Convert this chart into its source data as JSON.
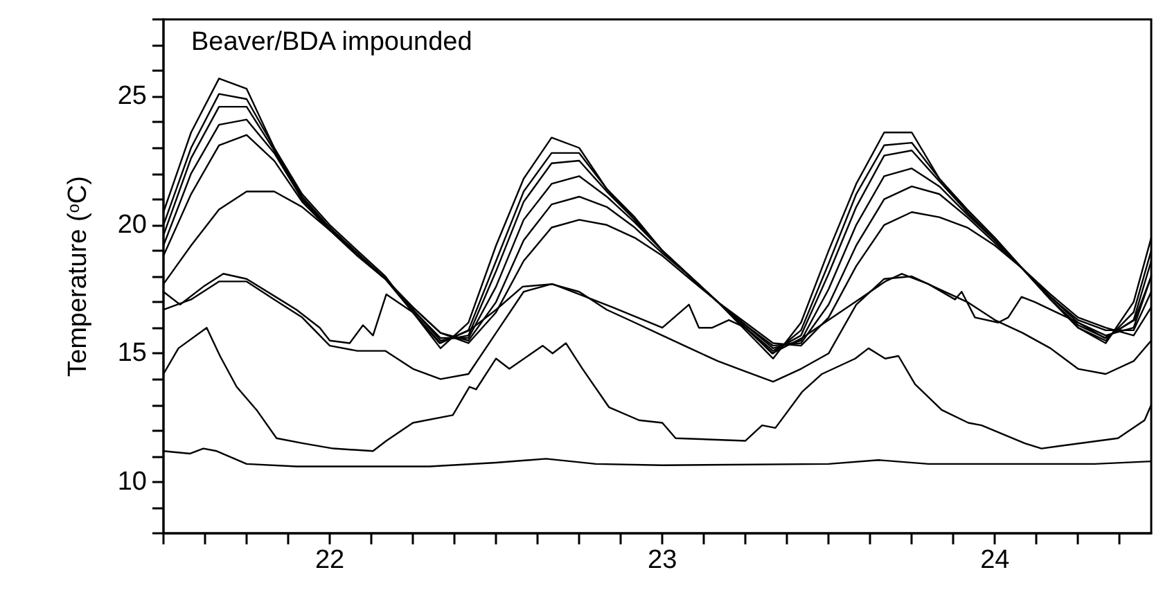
{
  "chart_data": {
    "type": "line",
    "title": "Beaver/BDA impounded",
    "ylabel": "Temperature ($^{o}$C)",
    "x": [
      21.5,
      21.583,
      21.667,
      21.75,
      21.833,
      21.917,
      22.0,
      22.083,
      22.167,
      22.25,
      22.333,
      22.417,
      22.5,
      22.583,
      22.667,
      22.75,
      22.833,
      22.917,
      23.0,
      23.083,
      23.167,
      23.25,
      23.333,
      23.417,
      23.5,
      23.583,
      23.667,
      23.75,
      23.833,
      23.917,
      24.0,
      24.083,
      24.167,
      24.25,
      24.333,
      24.417,
      24.47
    ],
    "series": [
      {
        "color": "#000000",
        "values": [
          20.5,
          23.6,
          25.7,
          25.3,
          23.0,
          21.2,
          20.0,
          19.0,
          18.0,
          16.6,
          15.2,
          16.2,
          19.2,
          21.8,
          23.4,
          23.0,
          21.4,
          20.3,
          19.0,
          18.0,
          17.0,
          15.9,
          14.8,
          16.2,
          19.0,
          21.6,
          23.6,
          23.6,
          21.8,
          20.6,
          19.5,
          18.3,
          17.1,
          16.0,
          15.4,
          17.0,
          19.5
        ]
      },
      {
        "color": "#000000",
        "values": [
          20.0,
          23.0,
          25.1,
          24.9,
          23.0,
          21.1,
          19.9,
          18.9,
          17.9,
          16.6,
          15.4,
          15.9,
          18.6,
          21.3,
          22.8,
          22.8,
          21.4,
          20.2,
          19.0,
          18.0,
          17.0,
          16.0,
          15.0,
          15.9,
          18.5,
          21.2,
          23.1,
          23.2,
          21.8,
          20.5,
          19.4,
          18.3,
          17.1,
          16.0,
          15.5,
          16.6,
          19.0
        ]
      },
      {
        "color": "#000000",
        "values": [
          19.6,
          22.6,
          24.6,
          24.6,
          22.9,
          21.0,
          19.9,
          18.9,
          17.9,
          16.7,
          15.5,
          15.7,
          18.2,
          20.9,
          22.4,
          22.5,
          21.3,
          20.2,
          19.0,
          18.0,
          17.0,
          16.0,
          15.1,
          15.7,
          18.1,
          20.7,
          22.7,
          22.9,
          21.7,
          20.5,
          19.4,
          18.3,
          17.1,
          16.1,
          15.6,
          16.3,
          18.6
        ]
      },
      {
        "color": "#000000",
        "values": [
          19.2,
          22.0,
          23.9,
          24.1,
          22.8,
          21.0,
          19.8,
          18.9,
          17.9,
          16.7,
          15.6,
          15.6,
          17.6,
          20.2,
          21.6,
          21.9,
          21.1,
          20.1,
          19.0,
          18.0,
          17.0,
          16.1,
          15.2,
          15.5,
          17.5,
          20.0,
          21.9,
          22.2,
          21.5,
          20.4,
          19.4,
          18.3,
          17.2,
          16.2,
          15.7,
          16.0,
          18.0
        ]
      },
      {
        "color": "#000000",
        "values": [
          18.8,
          21.2,
          23.1,
          23.5,
          22.5,
          20.9,
          19.8,
          18.8,
          17.9,
          16.8,
          15.8,
          15.5,
          17.0,
          19.4,
          20.8,
          21.1,
          20.7,
          19.9,
          18.9,
          18.0,
          17.0,
          16.1,
          15.3,
          15.4,
          16.9,
          19.2,
          21.0,
          21.5,
          21.2,
          20.3,
          19.3,
          18.3,
          17.2,
          16.3,
          15.9,
          15.9,
          17.4
        ]
      },
      {
        "color": "#000000",
        "values": [
          17.7,
          19.2,
          20.6,
          21.3,
          21.3,
          20.7,
          19.8,
          18.8,
          17.9,
          16.8,
          15.8,
          15.4,
          16.6,
          18.6,
          19.9,
          20.2,
          20.0,
          19.5,
          18.8,
          17.9,
          17.0,
          16.2,
          15.4,
          15.3,
          16.4,
          18.4,
          20.0,
          20.5,
          20.3,
          19.9,
          19.2,
          18.3,
          17.3,
          16.4,
          16.0,
          15.7,
          16.8
        ]
      },
      {
        "color": "#000000",
        "values": [
          16.7,
          17.1,
          17.8,
          17.8,
          17.1,
          16.4,
          15.3,
          15.1,
          15.1,
          14.4,
          14.0,
          14.2,
          15.8,
          17.4,
          17.7,
          17.4,
          16.7,
          16.2,
          15.7,
          15.2,
          14.7,
          14.3,
          13.9,
          14.4,
          15.0,
          16.9,
          17.9,
          18.0,
          17.5,
          17.0,
          16.3,
          15.8,
          15.2,
          14.4,
          14.2,
          14.7,
          15.5
        ]
      },
      {
        "color": "#000000",
        "x": [
          21.5,
          21.55,
          21.62,
          21.68,
          21.75,
          21.85,
          21.9,
          21.97,
          22.0,
          22.06,
          22.1,
          22.13,
          22.17,
          22.25,
          22.33,
          22.42,
          22.5,
          22.58,
          22.67,
          22.75,
          22.85,
          23.0,
          23.08,
          23.11,
          23.15,
          23.2,
          23.25,
          23.33,
          23.42,
          23.5,
          23.58,
          23.67,
          23.72,
          23.8,
          23.88,
          23.9,
          23.94,
          24.01,
          24.04,
          24.08,
          24.12,
          24.25,
          24.33,
          24.42,
          24.47
        ],
        "values": [
          17.4,
          16.9,
          17.6,
          18.1,
          17.9,
          17.1,
          16.7,
          16.0,
          15.5,
          15.4,
          16.1,
          15.7,
          17.3,
          16.6,
          15.4,
          15.9,
          16.7,
          17.6,
          17.7,
          17.3,
          16.8,
          16.0,
          16.9,
          16.0,
          16.0,
          16.3,
          16.0,
          15.0,
          15.6,
          16.3,
          17.0,
          17.8,
          18.1,
          17.7,
          17.1,
          17.4,
          16.4,
          16.2,
          16.4,
          17.2,
          17.0,
          16.2,
          15.6,
          16.3,
          18.0
        ]
      },
      {
        "color": "#000000",
        "x": [
          21.5,
          21.545,
          21.63,
          21.67,
          21.72,
          21.78,
          21.84,
          21.92,
          22.01,
          22.13,
          22.17,
          22.25,
          22.37,
          22.42,
          22.44,
          22.5,
          22.54,
          22.64,
          22.67,
          22.71,
          22.76,
          22.84,
          22.93,
          23.0,
          23.04,
          23.25,
          23.3,
          23.34,
          23.42,
          23.48,
          23.58,
          23.62,
          23.67,
          23.71,
          23.76,
          23.84,
          23.92,
          23.96,
          24.09,
          24.14,
          24.37,
          24.45,
          24.47
        ],
        "values": [
          14.2,
          15.2,
          16.0,
          14.9,
          13.7,
          12.8,
          11.7,
          11.5,
          11.3,
          11.2,
          11.6,
          12.3,
          12.6,
          13.7,
          13.6,
          14.8,
          14.4,
          15.3,
          15.0,
          15.4,
          14.4,
          12.9,
          12.4,
          12.3,
          11.7,
          11.6,
          12.2,
          12.1,
          13.5,
          14.2,
          14.8,
          15.2,
          14.8,
          14.9,
          13.8,
          12.8,
          12.3,
          12.2,
          11.5,
          11.3,
          11.7,
          12.4,
          13.0
        ]
      },
      {
        "color": "#000000",
        "x": [
          21.5,
          21.58,
          21.62,
          21.66,
          21.75,
          21.9,
          22.3,
          22.5,
          22.65,
          22.8,
          23.0,
          23.5,
          23.65,
          23.8,
          24.3,
          24.47
        ],
        "values": [
          11.2,
          11.1,
          11.3,
          11.2,
          10.7,
          10.6,
          10.6,
          10.75,
          10.9,
          10.7,
          10.65,
          10.7,
          10.85,
          10.7,
          10.7,
          10.8
        ]
      }
    ],
    "xlim": [
      21.5,
      24.47
    ],
    "xticks": [
      {
        "value": 21.5,
        "label": null
      },
      {
        "value": 21.625,
        "label": null
      },
      {
        "value": 21.75,
        "label": null
      },
      {
        "value": 21.875,
        "label": null
      },
      22,
      {
        "value": 22.125,
        "label": null
      },
      {
        "value": 22.25,
        "label": null
      },
      {
        "value": 22.375,
        "label": null
      },
      {
        "value": 22.5,
        "label": null
      },
      {
        "value": 22.625,
        "label": null
      },
      {
        "value": 22.75,
        "label": null
      },
      {
        "value": 22.875,
        "label": null
      },
      23,
      {
        "value": 23.125,
        "label": null
      },
      {
        "value": 23.25,
        "label": null
      },
      {
        "value": 23.375,
        "label": null
      },
      {
        "value": 23.5,
        "label": null
      },
      {
        "value": 23.625,
        "label": null
      },
      {
        "value": 23.75,
        "label": null
      },
      {
        "value": 23.875,
        "label": null
      },
      24,
      {
        "value": 24.125,
        "label": null
      },
      {
        "value": 24.25,
        "label": null
      },
      {
        "value": 24.375,
        "label": null
      }
    ],
    "ylim": [
      8,
      28
    ],
    "yticks": [
      {
        "value": 8,
        "label": null
      },
      {
        "value": 9,
        "label": null
      },
      10,
      {
        "value": 11,
        "label": null
      },
      {
        "value": 12,
        "label": null
      },
      {
        "value": 13,
        "label": null
      },
      {
        "value": 14,
        "label": null
      },
      15,
      {
        "value": 16,
        "label": null
      },
      {
        "value": 17,
        "label": null
      },
      {
        "value": 18,
        "label": null
      },
      {
        "value": 19,
        "label": null
      },
      20,
      {
        "value": 21,
        "label": null
      },
      {
        "value": 22,
        "label": null
      },
      {
        "value": 23,
        "label": null
      },
      {
        "value": 24,
        "label": null
      },
      25,
      {
        "value": 26,
        "label": null
      },
      {
        "value": 27,
        "label": null
      },
      {
        "value": 28,
        "label": null
      }
    ],
    "grid": false,
    "marker": "none",
    "line_style": "solid"
  }
}
